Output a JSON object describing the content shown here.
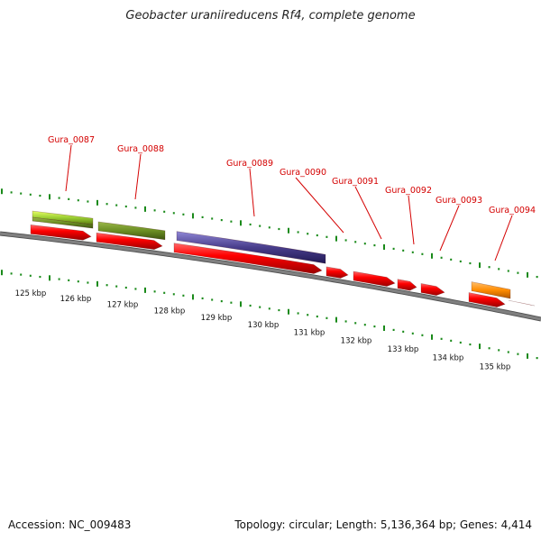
{
  "title": "Geobacter uraniireducens Rf4, complete genome",
  "footer": {
    "accession": "Accession: NC_009483",
    "summary": "Topology: circular; Length: 5,136,364 bp; Genes: 4,414"
  },
  "genes": [
    {
      "label": "Gura_0087",
      "feature_color": "#9acd32"
    },
    {
      "label": "Gura_0088",
      "feature_color": "#6b8e23"
    },
    {
      "label": "Gura_0089",
      "feature_color": "#483d8b"
    },
    {
      "label": "Gura_0090",
      "feature_color": "#ff0000"
    },
    {
      "label": "Gura_0091",
      "feature_color": "#ff0000"
    },
    {
      "label": "Gura_0092",
      "feature_color": "#ff0000"
    },
    {
      "label": "Gura_0093",
      "feature_color": "#ff0000"
    },
    {
      "label": "Gura_0094",
      "feature_color": "#ff8c00"
    }
  ],
  "kbp_ticks": [
    "125 kbp",
    "126 kbp",
    "127 kbp",
    "128 kbp",
    "129 kbp",
    "130 kbp",
    "131 kbp",
    "132 kbp",
    "133 kbp",
    "134 kbp",
    "135 kbp"
  ],
  "colors": {
    "cds": "#ff0000",
    "backbone": "#808080",
    "tick": "#1a8a1a",
    "label": "#d40000"
  }
}
